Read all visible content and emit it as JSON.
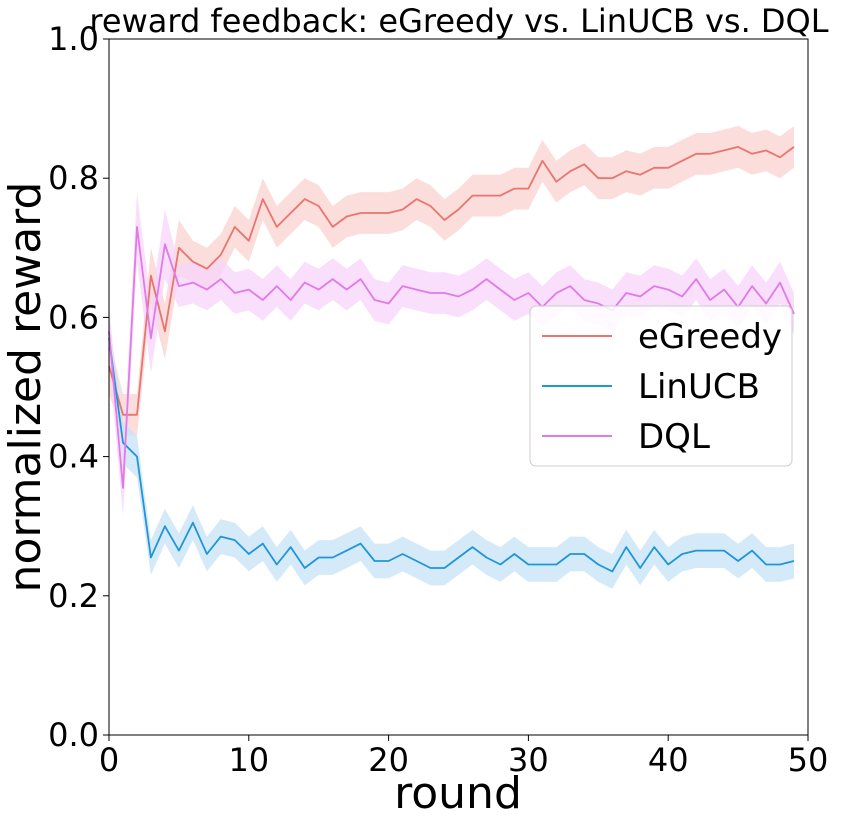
{
  "chart_data": {
    "type": "line",
    "title": "reward feedback: eGreedy vs. LinUCB vs. DQL",
    "xlabel": "round",
    "ylabel": "normalized reward",
    "xlim": [
      0,
      50
    ],
    "ylim": [
      0.0,
      1.0
    ],
    "x_ticks": [
      0,
      10,
      20,
      30,
      40,
      50
    ],
    "x_tick_labels": [
      "0",
      "10",
      "20",
      "30",
      "40",
      "50"
    ],
    "y_ticks": [
      0.0,
      0.2,
      0.4,
      0.6,
      0.8,
      1.0
    ],
    "y_tick_labels": [
      "0.0",
      "0.2",
      "0.4",
      "0.6",
      "0.8",
      "1.0"
    ],
    "grid": false,
    "legend_position": "center-right",
    "x": [
      0,
      1,
      2,
      3,
      4,
      5,
      6,
      7,
      8,
      9,
      10,
      11,
      12,
      13,
      14,
      15,
      16,
      17,
      18,
      19,
      20,
      21,
      22,
      23,
      24,
      25,
      26,
      27,
      28,
      29,
      30,
      31,
      32,
      33,
      34,
      35,
      36,
      37,
      38,
      39,
      40,
      41,
      42,
      43,
      44,
      45,
      46,
      47,
      48,
      49
    ],
    "series": [
      {
        "name": "eGreedy",
        "color": "#e8756f",
        "band_color": "#f9d2cf",
        "values": [
          0.53,
          0.46,
          0.46,
          0.66,
          0.58,
          0.7,
          0.68,
          0.67,
          0.69,
          0.73,
          0.71,
          0.77,
          0.73,
          0.75,
          0.77,
          0.76,
          0.73,
          0.745,
          0.75,
          0.75,
          0.75,
          0.755,
          0.77,
          0.76,
          0.74,
          0.755,
          0.775,
          0.775,
          0.775,
          0.785,
          0.785,
          0.825,
          0.795,
          0.81,
          0.82,
          0.8,
          0.8,
          0.81,
          0.805,
          0.815,
          0.815,
          0.825,
          0.835,
          0.835,
          0.84,
          0.845,
          0.835,
          0.84,
          0.83,
          0.845
        ],
        "band": [
          0.04,
          0.03,
          0.03,
          0.04,
          0.04,
          0.04,
          0.03,
          0.03,
          0.03,
          0.03,
          0.03,
          0.03,
          0.03,
          0.03,
          0.03,
          0.03,
          0.03,
          0.03,
          0.03,
          0.03,
          0.03,
          0.03,
          0.03,
          0.03,
          0.03,
          0.03,
          0.03,
          0.03,
          0.03,
          0.03,
          0.03,
          0.03,
          0.03,
          0.03,
          0.03,
          0.03,
          0.03,
          0.03,
          0.03,
          0.03,
          0.03,
          0.03,
          0.03,
          0.03,
          0.03,
          0.03,
          0.03,
          0.03,
          0.03,
          0.03
        ]
      },
      {
        "name": "LinUCB",
        "color": "#1f96d8",
        "band_color": "#c7e3f7",
        "values": [
          0.57,
          0.42,
          0.4,
          0.255,
          0.3,
          0.265,
          0.305,
          0.26,
          0.285,
          0.28,
          0.26,
          0.275,
          0.245,
          0.27,
          0.24,
          0.255,
          0.255,
          0.265,
          0.275,
          0.25,
          0.25,
          0.26,
          0.25,
          0.24,
          0.24,
          0.255,
          0.27,
          0.255,
          0.245,
          0.26,
          0.245,
          0.245,
          0.245,
          0.26,
          0.26,
          0.245,
          0.235,
          0.27,
          0.24,
          0.27,
          0.245,
          0.26,
          0.265,
          0.265,
          0.265,
          0.25,
          0.265,
          0.245,
          0.245,
          0.25
        ],
        "band": [
          0.03,
          0.03,
          0.03,
          0.025,
          0.025,
          0.025,
          0.025,
          0.025,
          0.025,
          0.025,
          0.025,
          0.025,
          0.025,
          0.025,
          0.025,
          0.025,
          0.025,
          0.025,
          0.025,
          0.025,
          0.025,
          0.025,
          0.025,
          0.025,
          0.025,
          0.025,
          0.025,
          0.025,
          0.025,
          0.025,
          0.025,
          0.025,
          0.025,
          0.025,
          0.025,
          0.025,
          0.025,
          0.025,
          0.025,
          0.025,
          0.025,
          0.025,
          0.025,
          0.025,
          0.025,
          0.025,
          0.025,
          0.025,
          0.025,
          0.025
        ]
      },
      {
        "name": "DQL",
        "color": "#e07ae8",
        "band_color": "#f7d4f9",
        "values": [
          0.58,
          0.355,
          0.73,
          0.57,
          0.705,
          0.645,
          0.65,
          0.64,
          0.655,
          0.635,
          0.64,
          0.625,
          0.645,
          0.625,
          0.65,
          0.64,
          0.655,
          0.64,
          0.655,
          0.625,
          0.62,
          0.645,
          0.64,
          0.635,
          0.635,
          0.63,
          0.64,
          0.655,
          0.64,
          0.625,
          0.635,
          0.615,
          0.635,
          0.645,
          0.625,
          0.62,
          0.61,
          0.635,
          0.63,
          0.645,
          0.64,
          0.63,
          0.655,
          0.625,
          0.64,
          0.615,
          0.645,
          0.62,
          0.65,
          0.605
        ],
        "band": [
          0.04,
          0.04,
          0.05,
          0.05,
          0.05,
          0.03,
          0.03,
          0.03,
          0.03,
          0.03,
          0.03,
          0.03,
          0.03,
          0.03,
          0.03,
          0.03,
          0.03,
          0.03,
          0.03,
          0.03,
          0.03,
          0.03,
          0.03,
          0.03,
          0.03,
          0.03,
          0.03,
          0.03,
          0.03,
          0.03,
          0.03,
          0.03,
          0.03,
          0.03,
          0.03,
          0.03,
          0.03,
          0.03,
          0.03,
          0.03,
          0.03,
          0.03,
          0.03,
          0.03,
          0.03,
          0.03,
          0.03,
          0.03,
          0.03,
          0.03
        ]
      }
    ]
  }
}
